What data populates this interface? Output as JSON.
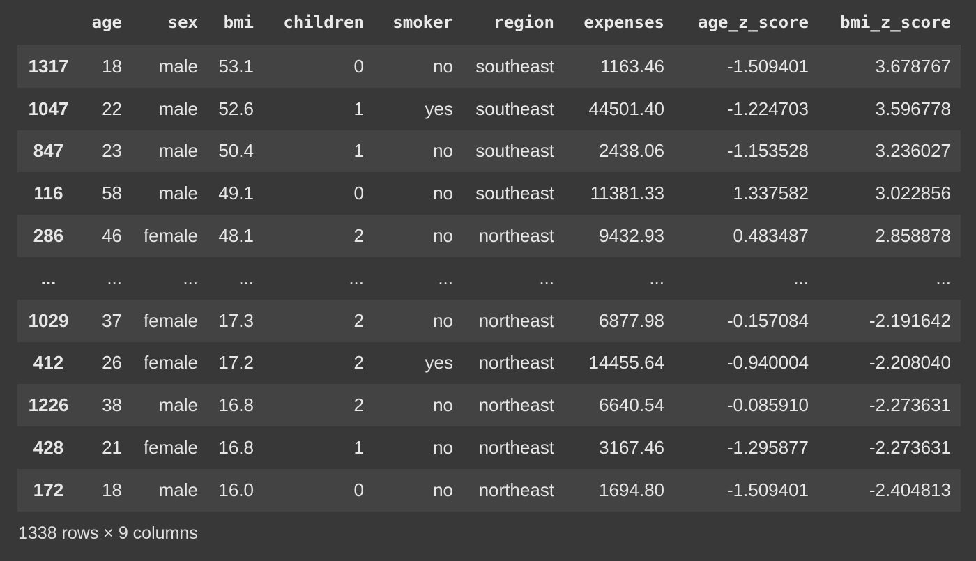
{
  "table": {
    "index_header": "",
    "columns": [
      "age",
      "sex",
      "bmi",
      "children",
      "smoker",
      "region",
      "expenses",
      "age_z_score",
      "bmi_z_score"
    ],
    "rows": [
      {
        "index": "1317",
        "cells": [
          "18",
          "male",
          "53.1",
          "0",
          "no",
          "southeast",
          "1163.46",
          "-1.509401",
          "3.678767"
        ]
      },
      {
        "index": "1047",
        "cells": [
          "22",
          "male",
          "52.6",
          "1",
          "yes",
          "southeast",
          "44501.40",
          "-1.224703",
          "3.596778"
        ]
      },
      {
        "index": "847",
        "cells": [
          "23",
          "male",
          "50.4",
          "1",
          "no",
          "southeast",
          "2438.06",
          "-1.153528",
          "3.236027"
        ]
      },
      {
        "index": "116",
        "cells": [
          "58",
          "male",
          "49.1",
          "0",
          "no",
          "southeast",
          "11381.33",
          "1.337582",
          "3.022856"
        ]
      },
      {
        "index": "286",
        "cells": [
          "46",
          "female",
          "48.1",
          "2",
          "no",
          "northeast",
          "9432.93",
          "0.483487",
          "2.858878"
        ]
      },
      {
        "index": "...",
        "cells": [
          "...",
          "...",
          "...",
          "...",
          "...",
          "...",
          "...",
          "...",
          "..."
        ]
      },
      {
        "index": "1029",
        "cells": [
          "37",
          "female",
          "17.3",
          "2",
          "no",
          "northeast",
          "6877.98",
          "-0.157084",
          "-2.191642"
        ]
      },
      {
        "index": "412",
        "cells": [
          "26",
          "female",
          "17.2",
          "2",
          "yes",
          "northeast",
          "14455.64",
          "-0.940004",
          "-2.208040"
        ]
      },
      {
        "index": "1226",
        "cells": [
          "38",
          "male",
          "16.8",
          "2",
          "no",
          "northeast",
          "6640.54",
          "-0.085910",
          "-2.273631"
        ]
      },
      {
        "index": "428",
        "cells": [
          "21",
          "female",
          "16.8",
          "1",
          "no",
          "northeast",
          "3167.46",
          "-1.295877",
          "-2.273631"
        ]
      },
      {
        "index": "172",
        "cells": [
          "18",
          "male",
          "16.0",
          "0",
          "no",
          "northeast",
          "1694.80",
          "-1.509401",
          "-2.404813"
        ]
      }
    ]
  },
  "shape_text": "1338 rows × 9 columns",
  "colors": {
    "background": "#383838",
    "row_stripe": "#434343",
    "text": "#e6e6e6"
  }
}
